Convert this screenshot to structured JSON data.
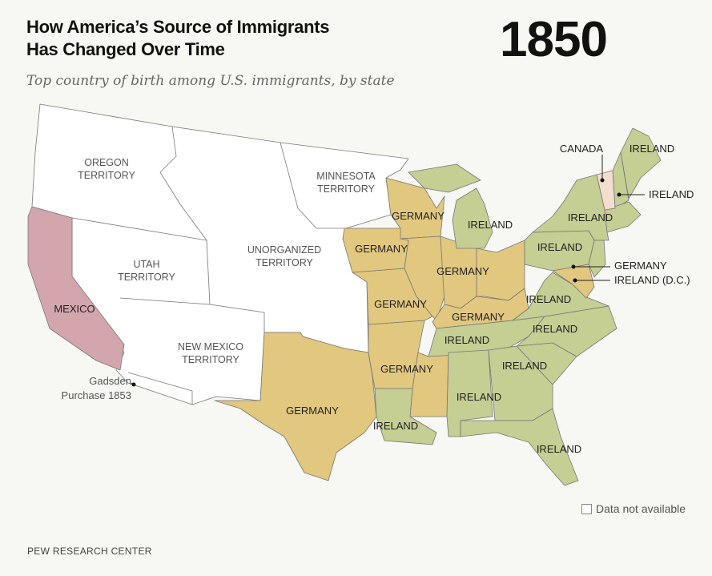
{
  "header": {
    "title_line1": "How America’s Source of Immigrants",
    "title_line2": "Has Changed Over Time",
    "year": "1850",
    "subtitle": "Top country of birth among U.S. immigrants, by state"
  },
  "colors": {
    "ireland": "#c5ce93",
    "germany": "#e2c77f",
    "mexico": "#d3a6ae",
    "canada": "#f4dccf",
    "no_data": "#ffffff",
    "background": "#f7f7f3"
  },
  "labels": {
    "oregon": "OREGON",
    "oregon2": "TERRITORY",
    "minnesota": "MINNESOTA",
    "minnesota2": "TERRITORY",
    "unorganized": "UNORGANIZED",
    "unorganized2": "TERRITORY",
    "utah": "UTAH",
    "utah2": "TERRITORY",
    "newmexico": "NEW MEXICO",
    "newmexico2": "TERRITORY",
    "mexico": "MEXICO",
    "gadsden1": "Gadsden",
    "gadsden2": "Purchase 1853",
    "wi": "GERMANY",
    "ia": "GERMANY",
    "il": "GERMANY",
    "mo": "GERMANY",
    "ky": "GERMANY",
    "ar": "GERMANY",
    "tx": "GERMANY",
    "la": "IRELAND",
    "mi": "IRELAND",
    "pa": "IRELAND",
    "ny": "IRELAND",
    "va": "IRELAND",
    "nc": "IRELAND",
    "tn": "IRELAND",
    "sc": "IRELAND",
    "al": "IRELAND",
    "fl": "IRELAND",
    "me": "IRELAND",
    "vt": "CANADA",
    "nh": "IRELAND",
    "md": "GERMANY",
    "dc": "IRELAND (D.C.)"
  },
  "legend": {
    "no_data": "Data not available"
  },
  "footer": {
    "source": "PEW RESEARCH CENTER"
  }
}
